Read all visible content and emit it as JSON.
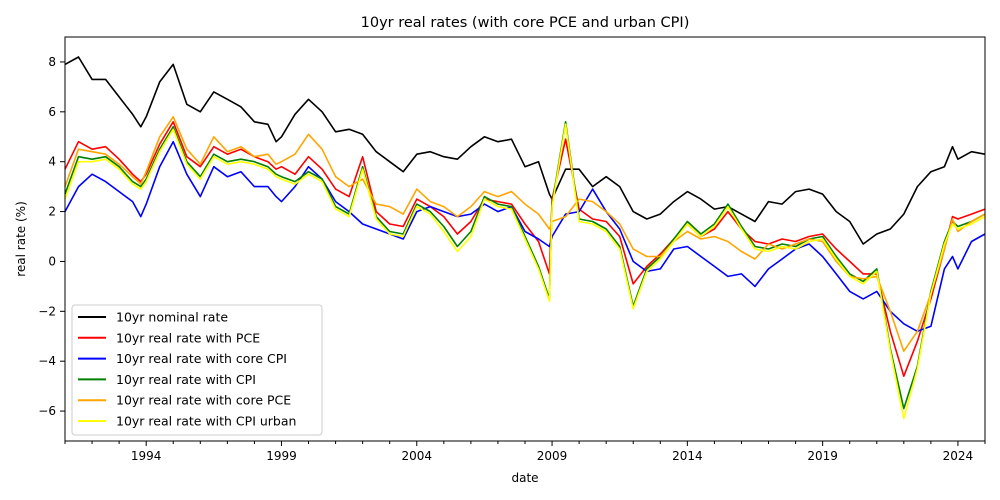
{
  "chart_data": {
    "type": "line",
    "title": "10yr real rates (with core PCE and urban CPI)",
    "xlabel": "date",
    "ylabel": "real rate (%)",
    "xlim": [
      1991.0,
      2025.0
    ],
    "ylim": [
      -7.2,
      9.0
    ],
    "x_ticks": [
      1994,
      1999,
      2004,
      2009,
      2014,
      2019,
      2024
    ],
    "y_ticks": [
      -6,
      -4,
      -2,
      0,
      2,
      4,
      6,
      8
    ],
    "grid": false,
    "legend_position": "lower-left",
    "series": [
      {
        "name": "10yr nominal rate",
        "color": "#000000",
        "x": [
          1991.0,
          1991.5,
          1992.0,
          1992.5,
          1993.0,
          1993.5,
          1993.8,
          1994.0,
          1994.5,
          1995.0,
          1995.5,
          1996.0,
          1996.5,
          1997.0,
          1997.5,
          1998.0,
          1998.5,
          1998.8,
          1999.0,
          1999.5,
          2000.0,
          2000.5,
          2001.0,
          2001.5,
          2002.0,
          2002.5,
          2003.0,
          2003.5,
          2004.0,
          2004.5,
          2005.0,
          2005.5,
          2006.0,
          2006.5,
          2007.0,
          2007.5,
          2008.0,
          2008.5,
          2008.9,
          2009.0,
          2009.5,
          2010.0,
          2010.5,
          2011.0,
          2011.5,
          2012.0,
          2012.5,
          2013.0,
          2013.5,
          2014.0,
          2014.5,
          2015.0,
          2015.5,
          2016.0,
          2016.5,
          2017.0,
          2017.5,
          2018.0,
          2018.5,
          2019.0,
          2019.5,
          2020.0,
          2020.5,
          2021.0,
          2021.5,
          2022.0,
          2022.5,
          2023.0,
          2023.5,
          2023.8,
          2024.0,
          2024.5,
          2025.0
        ],
        "values": [
          7.9,
          8.2,
          7.3,
          7.3,
          6.6,
          5.9,
          5.4,
          5.8,
          7.2,
          7.9,
          6.3,
          6.0,
          6.8,
          6.5,
          6.2,
          5.6,
          5.5,
          4.8,
          5.0,
          5.9,
          6.5,
          6.0,
          5.2,
          5.3,
          5.1,
          4.4,
          4.0,
          3.6,
          4.3,
          4.4,
          4.2,
          4.1,
          4.6,
          5.0,
          4.8,
          4.9,
          3.8,
          4.0,
          2.7,
          2.5,
          3.7,
          3.7,
          3.0,
          3.4,
          3.0,
          2.0,
          1.7,
          1.9,
          2.4,
          2.8,
          2.5,
          2.1,
          2.2,
          1.9,
          1.6,
          2.4,
          2.3,
          2.8,
          2.9,
          2.7,
          2.0,
          1.6,
          0.7,
          1.1,
          1.3,
          1.9,
          3.0,
          3.6,
          3.8,
          4.6,
          4.1,
          4.4,
          4.3
        ]
      },
      {
        "name": "10yr real rate with PCE",
        "color": "#ff0000",
        "x": [
          1991.0,
          1991.5,
          1992.0,
          1992.5,
          1993.0,
          1993.5,
          1993.8,
          1994.0,
          1994.5,
          1995.0,
          1995.5,
          1996.0,
          1996.5,
          1997.0,
          1997.5,
          1998.0,
          1998.5,
          1998.8,
          1999.0,
          1999.5,
          2000.0,
          2000.5,
          2001.0,
          2001.5,
          2002.0,
          2002.5,
          2003.0,
          2003.5,
          2004.0,
          2004.5,
          2005.0,
          2005.5,
          2006.0,
          2006.5,
          2007.0,
          2007.5,
          2008.0,
          2008.5,
          2008.9,
          2009.0,
          2009.5,
          2010.0,
          2010.5,
          2011.0,
          2011.5,
          2012.0,
          2012.5,
          2013.0,
          2013.5,
          2014.0,
          2014.5,
          2015.0,
          2015.5,
          2016.0,
          2016.5,
          2017.0,
          2017.5,
          2018.0,
          2018.5,
          2019.0,
          2019.5,
          2020.0,
          2020.5,
          2021.0,
          2021.5,
          2022.0,
          2022.5,
          2023.0,
          2023.5,
          2023.8,
          2024.0,
          2024.5,
          2025.0
        ],
        "values": [
          3.7,
          4.8,
          4.5,
          4.6,
          4.1,
          3.5,
          3.2,
          3.5,
          4.7,
          5.6,
          4.2,
          3.8,
          4.6,
          4.3,
          4.5,
          4.2,
          4.0,
          3.7,
          3.8,
          3.5,
          4.2,
          3.7,
          2.9,
          2.6,
          4.2,
          2.0,
          1.5,
          1.4,
          2.5,
          2.2,
          1.8,
          1.1,
          1.6,
          2.5,
          2.4,
          2.3,
          1.5,
          0.8,
          -0.5,
          2.5,
          4.9,
          2.1,
          1.7,
          1.6,
          1.0,
          -0.9,
          -0.2,
          0.3,
          0.9,
          1.5,
          1.0,
          1.3,
          2.0,
          1.3,
          0.8,
          0.7,
          0.9,
          0.8,
          1.0,
          1.1,
          0.5,
          0.0,
          -0.5,
          -0.5,
          -2.8,
          -4.6,
          -3.2,
          -1.5,
          0.5,
          1.8,
          1.7,
          1.9,
          2.1
        ]
      },
      {
        "name": "10yr real rate with core CPI",
        "color": "#0000ff",
        "x": [
          1991.0,
          1991.5,
          1992.0,
          1992.5,
          1993.0,
          1993.5,
          1993.8,
          1994.0,
          1994.5,
          1995.0,
          1995.5,
          1996.0,
          1996.5,
          1997.0,
          1997.5,
          1998.0,
          1998.5,
          1998.8,
          1999.0,
          1999.5,
          2000.0,
          2000.5,
          2001.0,
          2001.5,
          2002.0,
          2002.5,
          2003.0,
          2003.5,
          2004.0,
          2004.5,
          2005.0,
          2005.5,
          2006.0,
          2006.5,
          2007.0,
          2007.5,
          2008.0,
          2008.5,
          2008.9,
          2009.0,
          2009.5,
          2010.0,
          2010.5,
          2011.0,
          2011.5,
          2012.0,
          2012.5,
          2013.0,
          2013.5,
          2014.0,
          2014.5,
          2015.0,
          2015.5,
          2016.0,
          2016.5,
          2017.0,
          2017.5,
          2018.0,
          2018.5,
          2019.0,
          2019.5,
          2020.0,
          2020.5,
          2021.0,
          2021.5,
          2022.0,
          2022.5,
          2023.0,
          2023.5,
          2023.8,
          2024.0,
          2024.5,
          2025.0
        ],
        "values": [
          2.0,
          3.0,
          3.5,
          3.2,
          2.8,
          2.4,
          1.8,
          2.3,
          3.8,
          4.8,
          3.5,
          2.6,
          3.8,
          3.4,
          3.6,
          3.0,
          3.0,
          2.6,
          2.4,
          3.0,
          3.8,
          3.3,
          2.4,
          2.0,
          1.5,
          1.3,
          1.1,
          0.9,
          2.0,
          2.2,
          2.0,
          1.8,
          1.9,
          2.3,
          2.0,
          2.2,
          1.2,
          0.9,
          0.6,
          1.0,
          1.9,
          2.0,
          2.9,
          2.0,
          1.3,
          0.0,
          -0.4,
          -0.3,
          0.5,
          0.6,
          0.2,
          -0.2,
          -0.6,
          -0.5,
          -1.0,
          -0.3,
          0.1,
          0.5,
          0.7,
          0.2,
          -0.5,
          -1.2,
          -1.5,
          -1.2,
          -2.0,
          -2.5,
          -2.8,
          -2.6,
          -0.3,
          0.2,
          -0.3,
          0.8,
          1.1
        ]
      },
      {
        "name": "10yr real rate with CPI",
        "color": "#008000",
        "x": [
          1991.0,
          1991.5,
          1992.0,
          1992.5,
          1993.0,
          1993.5,
          1993.8,
          1994.0,
          1994.5,
          1995.0,
          1995.5,
          1996.0,
          1996.5,
          1997.0,
          1997.5,
          1998.0,
          1998.5,
          1998.8,
          1999.0,
          1999.5,
          2000.0,
          2000.5,
          2001.0,
          2001.5,
          2002.0,
          2002.5,
          2003.0,
          2003.5,
          2004.0,
          2004.5,
          2005.0,
          2005.5,
          2006.0,
          2006.5,
          2007.0,
          2007.5,
          2008.0,
          2008.5,
          2008.9,
          2009.0,
          2009.5,
          2010.0,
          2010.5,
          2011.0,
          2011.5,
          2012.0,
          2012.5,
          2013.0,
          2013.5,
          2014.0,
          2014.5,
          2015.0,
          2015.5,
          2016.0,
          2016.5,
          2017.0,
          2017.5,
          2018.0,
          2018.5,
          2019.0,
          2019.5,
          2020.0,
          2020.5,
          2021.0,
          2021.5,
          2022.0,
          2022.5,
          2023.0,
          2023.5,
          2023.8,
          2024.0,
          2024.5,
          2025.0
        ],
        "values": [
          2.7,
          4.2,
          4.1,
          4.2,
          3.8,
          3.2,
          3.0,
          3.3,
          4.5,
          5.4,
          4.0,
          3.4,
          4.3,
          4.0,
          4.1,
          4.0,
          3.8,
          3.5,
          3.4,
          3.2,
          3.6,
          3.3,
          2.2,
          1.9,
          3.8,
          1.8,
          1.2,
          1.1,
          2.3,
          2.0,
          1.4,
          0.6,
          1.2,
          2.6,
          2.3,
          2.2,
          1.0,
          -0.2,
          -1.5,
          2.3,
          5.6,
          1.7,
          1.6,
          1.3,
          0.6,
          -1.8,
          -0.3,
          0.2,
          0.9,
          1.6,
          1.1,
          1.5,
          2.3,
          1.4,
          0.6,
          0.5,
          0.7,
          0.6,
          0.9,
          1.0,
          0.2,
          -0.5,
          -0.8,
          -0.3,
          -3.5,
          -5.9,
          -4.2,
          -1.2,
          0.8,
          1.6,
          1.4,
          1.6,
          1.9
        ]
      },
      {
        "name": "10yr real rate with core PCE",
        "color": "#ffa500",
        "x": [
          1991.0,
          1991.5,
          1992.0,
          1992.5,
          1993.0,
          1993.5,
          1993.8,
          1994.0,
          1994.5,
          1995.0,
          1995.5,
          1996.0,
          1996.5,
          1997.0,
          1997.5,
          1998.0,
          1998.5,
          1998.8,
          1999.0,
          1999.5,
          2000.0,
          2000.5,
          2001.0,
          2001.5,
          2002.0,
          2002.5,
          2003.0,
          2003.5,
          2004.0,
          2004.5,
          2005.0,
          2005.5,
          2006.0,
          2006.5,
          2007.0,
          2007.5,
          2008.0,
          2008.5,
          2008.9,
          2009.0,
          2009.5,
          2010.0,
          2010.5,
          2011.0,
          2011.5,
          2012.0,
          2012.5,
          2013.0,
          2013.5,
          2014.0,
          2014.5,
          2015.0,
          2015.5,
          2016.0,
          2016.5,
          2017.0,
          2017.5,
          2018.0,
          2018.5,
          2019.0,
          2019.5,
          2020.0,
          2020.5,
          2021.0,
          2021.5,
          2022.0,
          2022.5,
          2023.0,
          2023.5,
          2023.8,
          2024.0,
          2024.5,
          2025.0
        ],
        "values": [
          3.0,
          4.5,
          4.4,
          4.3,
          3.9,
          3.4,
          3.1,
          3.6,
          5.0,
          5.8,
          4.5,
          3.9,
          5.0,
          4.4,
          4.6,
          4.2,
          4.3,
          3.9,
          4.0,
          4.3,
          5.1,
          4.5,
          3.4,
          3.0,
          3.3,
          2.3,
          2.2,
          1.9,
          2.9,
          2.4,
          2.2,
          1.8,
          2.2,
          2.8,
          2.6,
          2.8,
          2.3,
          1.9,
          1.3,
          1.6,
          1.8,
          2.5,
          2.4,
          2.0,
          1.5,
          0.5,
          0.2,
          0.2,
          0.8,
          1.2,
          0.9,
          1.0,
          0.8,
          0.4,
          0.1,
          0.7,
          0.5,
          0.7,
          0.9,
          0.8,
          0.0,
          -0.6,
          -0.7,
          -0.6,
          -2.0,
          -3.6,
          -2.8,
          -1.3,
          0.5,
          1.7,
          1.2,
          1.6,
          1.9
        ]
      },
      {
        "name": "10yr real rate with CPI urban",
        "color": "#ffff00",
        "x": [
          1991.0,
          1991.5,
          1992.0,
          1992.5,
          1993.0,
          1993.5,
          1993.8,
          1994.0,
          1994.5,
          1995.0,
          1995.5,
          1996.0,
          1996.5,
          1997.0,
          1997.5,
          1998.0,
          1998.5,
          1998.8,
          1999.0,
          1999.5,
          2000.0,
          2000.5,
          2001.0,
          2001.5,
          2002.0,
          2002.5,
          2003.0,
          2003.5,
          2004.0,
          2004.5,
          2005.0,
          2005.5,
          2006.0,
          2006.5,
          2007.0,
          2007.5,
          2008.0,
          2008.5,
          2008.9,
          2009.0,
          2009.5,
          2010.0,
          2010.5,
          2011.0,
          2011.5,
          2012.0,
          2012.5,
          2013.0,
          2013.5,
          2014.0,
          2014.5,
          2015.0,
          2015.5,
          2016.0,
          2016.5,
          2017.0,
          2017.5,
          2018.0,
          2018.5,
          2019.0,
          2019.5,
          2020.0,
          2020.5,
          2021.0,
          2021.5,
          2022.0,
          2022.5,
          2023.0,
          2023.5,
          2023.8,
          2024.0,
          2024.5,
          2025.0
        ],
        "values": [
          2.5,
          4.0,
          4.0,
          4.1,
          3.7,
          3.1,
          2.9,
          3.2,
          4.4,
          5.3,
          3.9,
          3.3,
          4.2,
          3.9,
          4.0,
          3.9,
          3.7,
          3.4,
          3.3,
          3.1,
          3.5,
          3.2,
          2.1,
          1.8,
          3.7,
          1.7,
          1.1,
          1.0,
          2.2,
          1.9,
          1.2,
          0.4,
          1.0,
          2.5,
          2.2,
          2.1,
          0.9,
          -0.3,
          -1.6,
          2.2,
          5.5,
          1.6,
          1.5,
          1.2,
          0.5,
          -1.9,
          -0.4,
          0.1,
          0.8,
          1.5,
          1.0,
          1.4,
          2.2,
          1.3,
          0.5,
          0.4,
          0.6,
          0.5,
          0.8,
          0.9,
          0.1,
          -0.6,
          -0.9,
          -0.4,
          -3.6,
          -6.3,
          -4.3,
          -1.3,
          0.7,
          1.5,
          1.3,
          1.5,
          1.8
        ]
      }
    ]
  }
}
